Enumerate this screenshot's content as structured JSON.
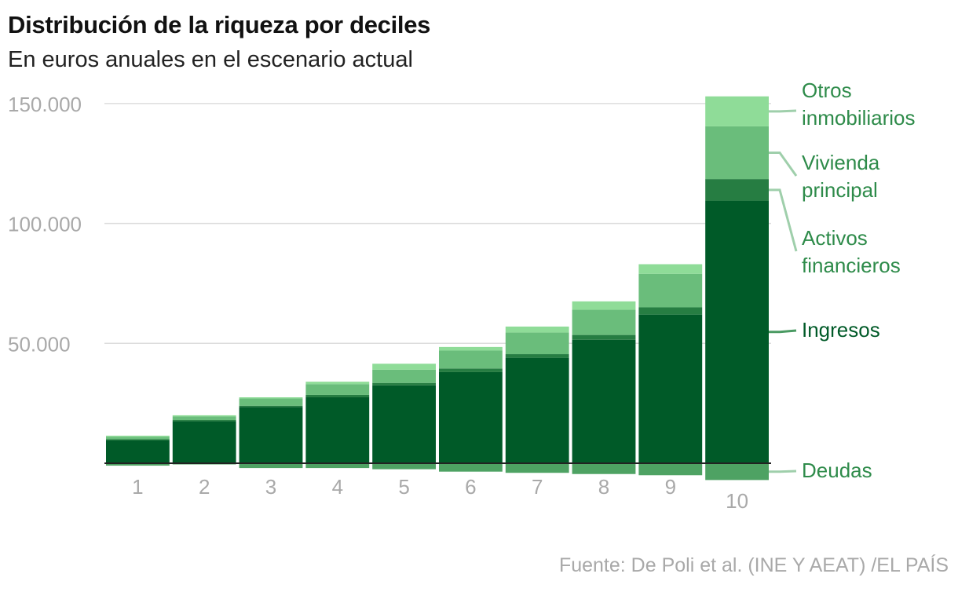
{
  "title": "Distribución de la riqueza por deciles",
  "subtitle": "En euros anuales en el escenario actual",
  "source": "Fuente: De Poli et al. (INE Y AEAT) /EL PAÍS",
  "chart_data": {
    "type": "bar",
    "stacked": true,
    "categories": [
      "1",
      "2",
      "3",
      "4",
      "5",
      "6",
      "7",
      "8",
      "9",
      "10"
    ],
    "ylim": [
      -7500,
      155000
    ],
    "yticks": [
      50000,
      100000,
      150000
    ],
    "ytick_labels": [
      "50.000",
      "100.000",
      "150.000"
    ],
    "grid": true,
    "legend_position": "right",
    "series": [
      {
        "name": "Ingresos",
        "label_lines": [
          "Ingresos"
        ],
        "color": "#005a28",
        "text_color": "#005a28",
        "values": [
          9500,
          17500,
          23500,
          27500,
          32500,
          38000,
          44000,
          51500,
          62000,
          109500
        ]
      },
      {
        "name": "Activos financieros",
        "label_lines": [
          "Activos",
          "financieros"
        ],
        "color": "#267d42",
        "text_color": "#2e8b4a",
        "values": [
          500,
          500,
          500,
          1000,
          1000,
          1500,
          1500,
          2000,
          3000,
          9000
        ]
      },
      {
        "name": "Vivienda principal",
        "label_lines": [
          "Vivienda",
          "principal"
        ],
        "color": "#6abd7b",
        "text_color": "#2e8b4a",
        "values": [
          1000,
          1500,
          3000,
          4500,
          5500,
          7500,
          9000,
          10500,
          14000,
          22000
        ]
      },
      {
        "name": "Otros inmobiliarios",
        "label_lines": [
          "Otros",
          "inmobiliarios"
        ],
        "color": "#8fdc98",
        "text_color": "#2e8b4a",
        "values": [
          500,
          500,
          500,
          1000,
          2500,
          1500,
          2500,
          3500,
          4000,
          12500
        ]
      },
      {
        "name": "Deudas",
        "label_lines": [
          "Deudas"
        ],
        "color": "#4ea263",
        "text_color": "#2e8b4a",
        "values": [
          -1000,
          -500,
          -2000,
          -2000,
          -2500,
          -3500,
          -4000,
          -4500,
          -5000,
          -7000
        ]
      }
    ]
  }
}
